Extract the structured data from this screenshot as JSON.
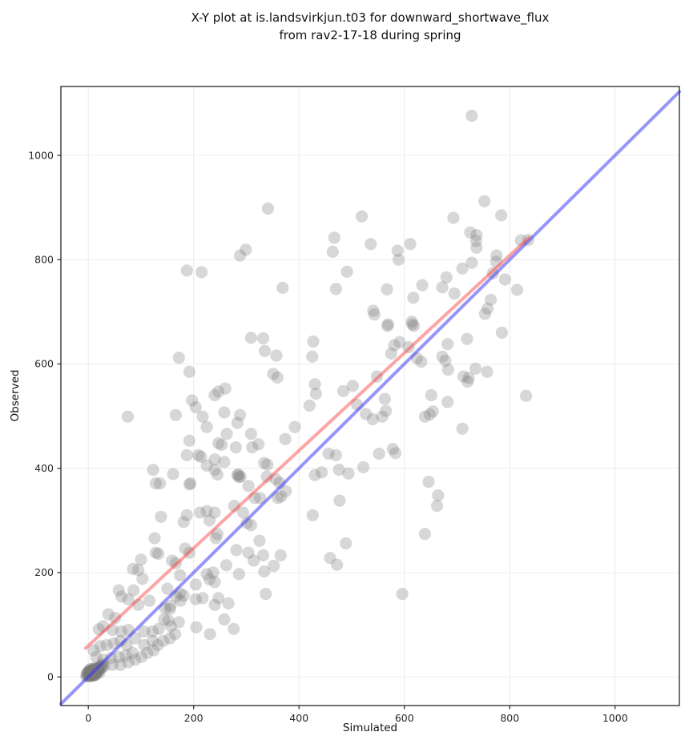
{
  "title": {
    "line1": "X-Y plot at is.landsvirkjun.t03 for downward_shortwave_flux",
    "line2": "from rav2-17-18 during spring"
  },
  "chart_data": {
    "type": "scatter",
    "title": "X-Y plot at is.landsvirkjun.t03 for downward_shortwave_flux from rav2-17-18 during spring",
    "xlabel": "Simulated",
    "ylabel": "Observed",
    "xlim": [
      -52,
      1122
    ],
    "ylim": [
      -55,
      1132
    ],
    "xticks": [
      0,
      200,
      400,
      600,
      800,
      1000
    ],
    "yticks": [
      0,
      200,
      400,
      600,
      800,
      1000
    ],
    "grid": true,
    "grid_color": "#ececec",
    "spine_color": "#262626",
    "tick_label_color": "#262626",
    "marker": {
      "color": "#7a7a7a",
      "opacity": 0.3,
      "radius_px": 7.6
    },
    "legend": "none",
    "lines": [
      {
        "name": "identity-line",
        "color": "rgba(45,45,245,0.5)",
        "width": 4,
        "points": [
          [
            -52,
            -52
          ],
          [
            1122,
            1122
          ]
        ]
      },
      {
        "name": "regression-line",
        "color": "rgba(250,55,55,0.45)",
        "width": 4,
        "points": [
          [
            -5,
            55
          ],
          [
            836,
            842
          ]
        ]
      }
    ],
    "points": [
      [
        -2,
        3
      ],
      [
        0,
        1
      ],
      [
        1,
        5
      ],
      [
        2,
        2
      ],
      [
        3,
        7
      ],
      [
        4,
        3
      ],
      [
        5,
        6
      ],
      [
        6,
        2
      ],
      [
        7,
        8
      ],
      [
        8,
        4
      ],
      [
        9,
        9
      ],
      [
        10,
        5
      ],
      [
        11,
        10
      ],
      [
        12,
        6
      ],
      [
        0,
        8
      ],
      [
        1,
        11
      ],
      [
        2,
        5
      ],
      [
        3,
        2
      ],
      [
        4,
        9
      ],
      [
        5,
        12
      ],
      [
        6,
        6
      ],
      [
        7,
        3
      ],
      [
        8,
        11
      ],
      [
        9,
        6
      ],
      [
        10,
        12
      ],
      [
        11,
        7
      ],
      [
        12,
        13
      ],
      [
        13,
        8
      ],
      [
        14,
        12
      ],
      [
        15,
        9
      ],
      [
        16,
        14
      ],
      [
        17,
        10
      ],
      [
        -4,
        1
      ],
      [
        -3,
        6
      ],
      [
        -1,
        9
      ],
      [
        13,
        4
      ],
      [
        14,
        7
      ],
      [
        15,
        15
      ],
      [
        16,
        8
      ],
      [
        18,
        13
      ],
      [
        19,
        11
      ],
      [
        20,
        16
      ],
      [
        3,
        12
      ],
      [
        5,
        3
      ],
      [
        7,
        13
      ],
      [
        9,
        2
      ],
      [
        11,
        3
      ],
      [
        13,
        11
      ],
      [
        2,
        9
      ],
      [
        6,
        10
      ],
      [
        10,
        8
      ],
      [
        14,
        4
      ],
      [
        18,
        16
      ],
      [
        20,
        12
      ],
      [
        22,
        17
      ],
      [
        24,
        20
      ],
      [
        26,
        18
      ],
      [
        21,
        8
      ],
      [
        8,
        15
      ],
      [
        4,
        15
      ],
      [
        12,
        16
      ],
      [
        16,
        18
      ],
      [
        25,
        22
      ],
      [
        27,
        24
      ],
      [
        30,
        20
      ],
      [
        46,
        23
      ],
      [
        61,
        23
      ],
      [
        76,
        28
      ],
      [
        15,
        38
      ],
      [
        28,
        33
      ],
      [
        43,
        36
      ],
      [
        58,
        38
      ],
      [
        71,
        41
      ],
      [
        84,
        46
      ],
      [
        89,
        33
      ],
      [
        101,
        38
      ],
      [
        112,
        46
      ],
      [
        124,
        51
      ],
      [
        10,
        51
      ],
      [
        23,
        59
      ],
      [
        35,
        61
      ],
      [
        48,
        64
      ],
      [
        61,
        69
      ],
      [
        73,
        61
      ],
      [
        106,
        61
      ],
      [
        122,
        69
      ],
      [
        132,
        61
      ],
      [
        142,
        69
      ],
      [
        89,
        74
      ],
      [
        155,
        74
      ],
      [
        165,
        82
      ],
      [
        63,
        87
      ],
      [
        76,
        90
      ],
      [
        106,
        87
      ],
      [
        122,
        87
      ],
      [
        46,
        90
      ],
      [
        134,
        92
      ],
      [
        20,
        91
      ],
      [
        28,
        97
      ],
      [
        157,
        97
      ],
      [
        51,
        113
      ],
      [
        144,
        110
      ],
      [
        152,
        108
      ],
      [
        172,
        105
      ],
      [
        38,
        120
      ],
      [
        205,
        95
      ],
      [
        231,
        82
      ],
      [
        258,
        110
      ],
      [
        95,
        138
      ],
      [
        116,
        146
      ],
      [
        146,
        131
      ],
      [
        155,
        130
      ],
      [
        175,
        146
      ],
      [
        63,
        154
      ],
      [
        76,
        149
      ],
      [
        58,
        166
      ],
      [
        86,
        166
      ],
      [
        103,
        188
      ],
      [
        150,
        169
      ],
      [
        167,
        154
      ],
      [
        156,
        136
      ],
      [
        174,
        160
      ],
      [
        181,
        156
      ],
      [
        204,
        149
      ],
      [
        217,
        151
      ],
      [
        240,
        138
      ],
      [
        247,
        151
      ],
      [
        276,
        92
      ],
      [
        266,
        141
      ],
      [
        337,
        159
      ],
      [
        596,
        159
      ],
      [
        174,
        195
      ],
      [
        204,
        177
      ],
      [
        225,
        197
      ],
      [
        237,
        200
      ],
      [
        230,
        187
      ],
      [
        240,
        182
      ],
      [
        286,
        197
      ],
      [
        334,
        202
      ],
      [
        262,
        214
      ],
      [
        352,
        213
      ],
      [
        365,
        233
      ],
      [
        304,
        238
      ],
      [
        314,
        223
      ],
      [
        332,
        233
      ],
      [
        100,
        225
      ],
      [
        159,
        223
      ],
      [
        166,
        218
      ],
      [
        85,
        207
      ],
      [
        95,
        205
      ],
      [
        133,
        236
      ],
      [
        128,
        238
      ],
      [
        126,
        266
      ],
      [
        242,
        266
      ],
      [
        245,
        274
      ],
      [
        192,
        238
      ],
      [
        184,
        246
      ],
      [
        281,
        243
      ],
      [
        325,
        261
      ],
      [
        459,
        228
      ],
      [
        472,
        215
      ],
      [
        489,
        256
      ],
      [
        301,
        295
      ],
      [
        309,
        291
      ],
      [
        294,
        315
      ],
      [
        277,
        328
      ],
      [
        304,
        366
      ],
      [
        316,
        343
      ],
      [
        326,
        343
      ],
      [
        360,
        343
      ],
      [
        375,
        356
      ],
      [
        289,
        384
      ],
      [
        285,
        388
      ],
      [
        138,
        307
      ],
      [
        187,
        310
      ],
      [
        212,
        315
      ],
      [
        225,
        318
      ],
      [
        240,
        315
      ],
      [
        181,
        297
      ],
      [
        230,
        300
      ],
      [
        136,
        371
      ],
      [
        192,
        369
      ],
      [
        123,
        397
      ],
      [
        161,
        389
      ],
      [
        128,
        371
      ],
      [
        194,
        371
      ],
      [
        283,
        387
      ],
      [
        286,
        383
      ],
      [
        366,
        346
      ],
      [
        426,
        310
      ],
      [
        477,
        338
      ],
      [
        646,
        374
      ],
      [
        664,
        348
      ],
      [
        662,
        328
      ],
      [
        639,
        274
      ],
      [
        356,
        379
      ],
      [
        363,
        372
      ],
      [
        339,
        384
      ],
      [
        430,
        387
      ],
      [
        443,
        392
      ],
      [
        494,
        390
      ],
      [
        522,
        402
      ],
      [
        245,
        388
      ],
      [
        240,
        397
      ],
      [
        334,
        410
      ],
      [
        340,
        407
      ],
      [
        311,
        440
      ],
      [
        280,
        440
      ],
      [
        323,
        446
      ],
      [
        247,
        448
      ],
      [
        253,
        445
      ],
      [
        192,
        453
      ],
      [
        187,
        425
      ],
      [
        209,
        425
      ],
      [
        214,
        422
      ],
      [
        240,
        417
      ],
      [
        258,
        412
      ],
      [
        225,
        405
      ],
      [
        374,
        456
      ],
      [
        392,
        479
      ],
      [
        420,
        520
      ],
      [
        430,
        561
      ],
      [
        432,
        543
      ],
      [
        470,
        425
      ],
      [
        476,
        397
      ],
      [
        456,
        428
      ],
      [
        552,
        428
      ],
      [
        583,
        429
      ],
      [
        578,
        437
      ],
      [
        502,
        558
      ],
      [
        484,
        548
      ],
      [
        548,
        576
      ],
      [
        563,
        533
      ],
      [
        510,
        522
      ],
      [
        565,
        510
      ],
      [
        558,
        499
      ],
      [
        527,
        504
      ],
      [
        540,
        494
      ],
      [
        651,
        540
      ],
      [
        654,
        509
      ],
      [
        648,
        503
      ],
      [
        639,
        499
      ],
      [
        682,
        527
      ],
      [
        710,
        476
      ],
      [
        831,
        539
      ],
      [
        260,
        553
      ],
      [
        240,
        540
      ],
      [
        247,
        547
      ],
      [
        197,
        530
      ],
      [
        204,
        517
      ],
      [
        217,
        499
      ],
      [
        258,
        507
      ],
      [
        288,
        502
      ],
      [
        283,
        487
      ],
      [
        225,
        479
      ],
      [
        263,
        466
      ],
      [
        309,
        466
      ],
      [
        75,
        499
      ],
      [
        166,
        502
      ],
      [
        192,
        585
      ],
      [
        351,
        581
      ],
      [
        359,
        574
      ],
      [
        172,
        612
      ],
      [
        425,
        614
      ],
      [
        575,
        620
      ],
      [
        608,
        632
      ],
      [
        624,
        611
      ],
      [
        632,
        604
      ],
      [
        672,
        614
      ],
      [
        678,
        606
      ],
      [
        683,
        589
      ],
      [
        735,
        591
      ],
      [
        757,
        585
      ],
      [
        712,
        576
      ],
      [
        720,
        566
      ],
      [
        722,
        573
      ],
      [
        591,
        642
      ],
      [
        682,
        638
      ],
      [
        719,
        648
      ],
      [
        543,
        695
      ],
      [
        569,
        676
      ],
      [
        615,
        676
      ],
      [
        618,
        673
      ],
      [
        753,
        696
      ],
      [
        785,
        660
      ],
      [
        309,
        650
      ],
      [
        332,
        649
      ],
      [
        335,
        625
      ],
      [
        357,
        616
      ],
      [
        427,
        643
      ],
      [
        581,
        636
      ],
      [
        614,
        681
      ],
      [
        568,
        673
      ],
      [
        369,
        746
      ],
      [
        470,
        744
      ],
      [
        491,
        777
      ],
      [
        541,
        702
      ],
      [
        567,
        743
      ],
      [
        617,
        727
      ],
      [
        634,
        751
      ],
      [
        672,
        747
      ],
      [
        680,
        766
      ],
      [
        695,
        735
      ],
      [
        710,
        783
      ],
      [
        728,
        794
      ],
      [
        758,
        706
      ],
      [
        764,
        723
      ],
      [
        768,
        774
      ],
      [
        791,
        762
      ],
      [
        814,
        742
      ],
      [
        775,
        808
      ],
      [
        774,
        796
      ],
      [
        288,
        808
      ],
      [
        299,
        819
      ],
      [
        187,
        779
      ],
      [
        215,
        776
      ],
      [
        725,
        852
      ],
      [
        737,
        847
      ],
      [
        736,
        836
      ],
      [
        737,
        823
      ],
      [
        821,
        837
      ],
      [
        835,
        838
      ],
      [
        589,
        800
      ],
      [
        587,
        817
      ],
      [
        611,
        830
      ],
      [
        536,
        830
      ],
      [
        464,
        815
      ],
      [
        467,
        842
      ],
      [
        693,
        880
      ],
      [
        519,
        883
      ],
      [
        784,
        885
      ],
      [
        341,
        898
      ],
      [
        752,
        912
      ],
      [
        728,
        1076
      ]
    ]
  }
}
